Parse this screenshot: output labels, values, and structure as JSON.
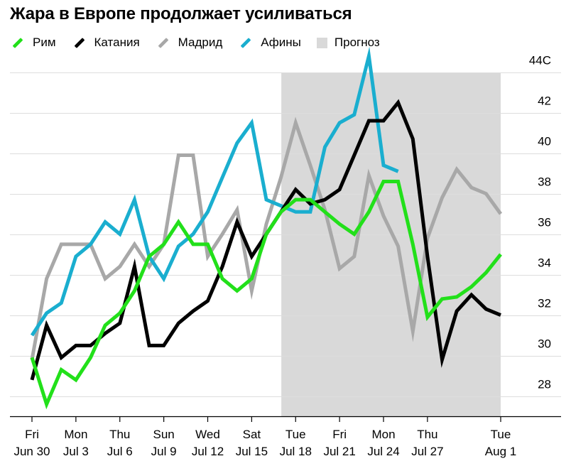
{
  "title": "Жара в Европе продолжает усиливаться",
  "legend": [
    {
      "name": "Рим",
      "color": "#22e01a"
    },
    {
      "name": "Катания",
      "color": "#000000"
    },
    {
      "name": "Мадрид",
      "color": "#a8a8a8"
    },
    {
      "name": "Афины",
      "color": "#1aaecf"
    },
    {
      "name": "Прогноз",
      "color": "#d9d9d9"
    }
  ],
  "chart_data": {
    "type": "line",
    "title": "Жара в Европе продолжает усиливаться",
    "unit": "C",
    "xlabel": "",
    "ylabel": "",
    "ylim": [
      26.7,
      44
    ],
    "xlim": [
      0,
      32
    ],
    "y_ticks": [
      {
        "value": 44,
        "label": "44C"
      },
      {
        "value": 42,
        "label": "42"
      },
      {
        "value": 40,
        "label": "40"
      },
      {
        "value": 38,
        "label": "38"
      },
      {
        "value": 36,
        "label": "36"
      },
      {
        "value": 34,
        "label": "34"
      },
      {
        "value": 32,
        "label": "32"
      },
      {
        "value": 30,
        "label": "30"
      },
      {
        "value": 28,
        "label": "28"
      }
    ],
    "x_ticks": [
      {
        "day": 0,
        "line1": "Fri",
        "line2": "Jun 30"
      },
      {
        "day": 3,
        "line1": "Mon",
        "line2": "Jul 3"
      },
      {
        "day": 6,
        "line1": "Thu",
        "line2": "Jul 6"
      },
      {
        "day": 9,
        "line1": "Sun",
        "line2": "Jul 9"
      },
      {
        "day": 12,
        "line1": "Wed",
        "line2": "Jul 12"
      },
      {
        "day": 15,
        "line1": "Sat",
        "line2": "Jul 15"
      },
      {
        "day": 18,
        "line1": "Tue",
        "line2": "Jul 18"
      },
      {
        "day": 21,
        "line1": "Fri",
        "line2": "Jul 21"
      },
      {
        "day": 24,
        "line1": "Mon",
        "line2": "Jul 24"
      },
      {
        "day": 27,
        "line1": "Thu",
        "line2": "Jul 27"
      },
      {
        "day": 32,
        "line1": "Tue",
        "line2": "Aug 1"
      }
    ],
    "forecast_range": [
      17,
      32
    ],
    "series": [
      {
        "name": "Мадрид",
        "color": "#a8a8a8",
        "x": [
          0,
          1,
          2,
          3,
          4,
          5,
          6,
          7,
          8,
          9,
          10,
          11,
          12,
          13,
          14,
          15,
          16,
          17,
          18,
          19,
          20,
          21,
          22,
          23,
          24,
          25,
          26,
          27,
          28,
          29,
          30,
          31,
          32
        ],
        "y": [
          29.2,
          33.2,
          34.9,
          34.9,
          34.9,
          33.2,
          33.8,
          34.9,
          33.8,
          34.9,
          39.3,
          39.3,
          34.3,
          35.4,
          36.6,
          32.6,
          35.9,
          38.2,
          40.9,
          38.8,
          36.6,
          33.7,
          34.3,
          38.3,
          36.3,
          34.8,
          30.6,
          35.2,
          37.2,
          38.6,
          37.7,
          37.4,
          36.4
        ]
      },
      {
        "name": "Афины",
        "color": "#1aaecf",
        "x": [
          0,
          1,
          2,
          3,
          4,
          5,
          6,
          7,
          8,
          9,
          10,
          11,
          12,
          13,
          14,
          15,
          16,
          17,
          18,
          19,
          20,
          21,
          22,
          23,
          24,
          25
        ],
        "y": [
          30.4,
          31.5,
          32.0,
          34.3,
          34.9,
          36.0,
          35.4,
          37.1,
          34.3,
          33.2,
          34.8,
          35.4,
          36.5,
          38.2,
          39.9,
          40.9,
          37.1,
          36.8,
          36.5,
          36.5,
          39.7,
          40.9,
          41.3,
          44.2,
          38.8,
          38.5
        ]
      },
      {
        "name": "Катания",
        "color": "#000000",
        "x": [
          0,
          1,
          2,
          3,
          4,
          5,
          6,
          7,
          8,
          9,
          10,
          11,
          12,
          13,
          14,
          15,
          16,
          17,
          18,
          19,
          20,
          21,
          22,
          23,
          24,
          25,
          26,
          27,
          28,
          29,
          30,
          31,
          32
        ],
        "y": [
          28.2,
          30.9,
          29.3,
          29.9,
          29.9,
          30.5,
          31.0,
          33.8,
          29.9,
          29.9,
          31.0,
          31.6,
          32.1,
          33.8,
          36.0,
          34.3,
          35.4,
          36.5,
          37.6,
          36.9,
          37.1,
          37.6,
          39.3,
          41.0,
          41.0,
          41.9,
          40.1,
          34.3,
          29.2,
          31.6,
          32.4,
          31.7,
          31.4
        ]
      },
      {
        "name": "Рим",
        "color": "#22e01a",
        "x": [
          0,
          1,
          2,
          3,
          4,
          5,
          6,
          7,
          8,
          9,
          10,
          11,
          12,
          13,
          14,
          15,
          16,
          17,
          18,
          19,
          20,
          21,
          22,
          23,
          24,
          25,
          26,
          27,
          28,
          29,
          30,
          31,
          32
        ],
        "y": [
          29.3,
          27.0,
          28.7,
          28.2,
          29.3,
          30.9,
          31.5,
          32.6,
          34.3,
          34.9,
          36.0,
          34.9,
          34.9,
          33.2,
          32.6,
          33.2,
          35.4,
          36.5,
          37.1,
          37.1,
          36.5,
          35.9,
          35.4,
          36.5,
          38.0,
          38.0,
          34.9,
          31.3,
          32.2,
          32.3,
          32.8,
          33.5,
          34.4
        ]
      }
    ]
  }
}
